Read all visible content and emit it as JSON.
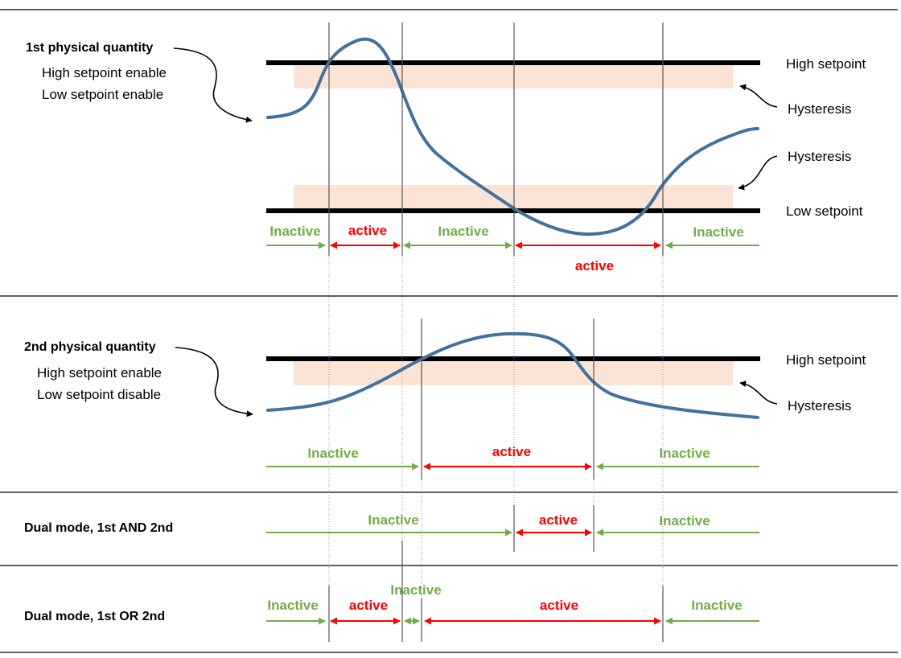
{
  "colors": {
    "inactive": "#70ad47",
    "active": "#ff0000",
    "curve": "#41719c",
    "hysteresis_band": "#fbe4d5",
    "setpoint_line": "#000000",
    "divider": "#000000"
  },
  "panels": [
    {
      "id": "q1",
      "title": "1st physical quantity",
      "lines": [
        "High setpoint enable",
        "Low setpoint enable"
      ],
      "high_setpoint_label": "High setpoint",
      "high_hysteresis_label": "Hysteresis",
      "low_hysteresis_label": "Hysteresis",
      "low_setpoint_label": "Low setpoint",
      "states": [
        {
          "label": "Inactive",
          "state": "inactive"
        },
        {
          "label": "active",
          "state": "active"
        },
        {
          "label": "Inactive",
          "state": "inactive"
        },
        {
          "label": "active",
          "state": "active"
        },
        {
          "label": "Inactive",
          "state": "inactive"
        }
      ]
    },
    {
      "id": "q2",
      "title": "2nd physical quantity",
      "lines": [
        "High setpoint enable",
        "Low setpoint disable"
      ],
      "high_setpoint_label": "High setpoint",
      "high_hysteresis_label": "Hysteresis",
      "states": [
        {
          "label": "Inactive",
          "state": "inactive"
        },
        {
          "label": "active",
          "state": "active"
        },
        {
          "label": "Inactive",
          "state": "inactive"
        }
      ]
    },
    {
      "id": "and",
      "title": "Dual mode, 1st AND 2nd",
      "states": [
        {
          "label": "Inactive",
          "state": "inactive"
        },
        {
          "label": "active",
          "state": "active"
        },
        {
          "label": "Inactive",
          "state": "inactive"
        }
      ]
    },
    {
      "id": "or",
      "title": "Dual mode, 1st OR 2nd",
      "states": [
        {
          "label": "Inactive",
          "state": "inactive"
        },
        {
          "label": "active",
          "state": "active"
        },
        {
          "label": "Inactive",
          "state": "inactive"
        },
        {
          "label": "active",
          "state": "active"
        },
        {
          "label": "Inactive",
          "state": "inactive"
        }
      ]
    }
  ]
}
